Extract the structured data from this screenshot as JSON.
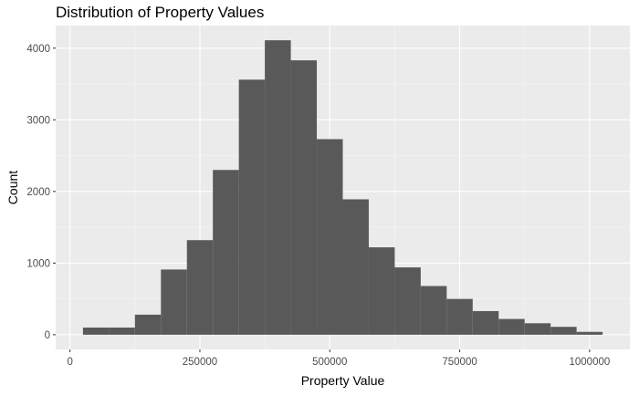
{
  "chart_data": {
    "type": "bar",
    "title": "Distribution of Property Values",
    "xlabel": "Property Value",
    "ylabel": "Count",
    "bin_width": 50000,
    "bins": [
      {
        "x_start": 25000,
        "x_end": 75000,
        "count": 100
      },
      {
        "x_start": 75000,
        "x_end": 125000,
        "count": 100
      },
      {
        "x_start": 125000,
        "x_end": 175000,
        "count": 280
      },
      {
        "x_start": 175000,
        "x_end": 225000,
        "count": 910
      },
      {
        "x_start": 225000,
        "x_end": 275000,
        "count": 1320
      },
      {
        "x_start": 275000,
        "x_end": 325000,
        "count": 2300
      },
      {
        "x_start": 325000,
        "x_end": 375000,
        "count": 3560
      },
      {
        "x_start": 375000,
        "x_end": 425000,
        "count": 4110
      },
      {
        "x_start": 425000,
        "x_end": 475000,
        "count": 3830
      },
      {
        "x_start": 475000,
        "x_end": 525000,
        "count": 2730
      },
      {
        "x_start": 525000,
        "x_end": 575000,
        "count": 1890
      },
      {
        "x_start": 575000,
        "x_end": 625000,
        "count": 1220
      },
      {
        "x_start": 625000,
        "x_end": 675000,
        "count": 940
      },
      {
        "x_start": 675000,
        "x_end": 725000,
        "count": 680
      },
      {
        "x_start": 725000,
        "x_end": 775000,
        "count": 500
      },
      {
        "x_start": 775000,
        "x_end": 825000,
        "count": 330
      },
      {
        "x_start": 825000,
        "x_end": 875000,
        "count": 220
      },
      {
        "x_start": 875000,
        "x_end": 925000,
        "count": 160
      },
      {
        "x_start": 925000,
        "x_end": 975000,
        "count": 110
      },
      {
        "x_start": 975000,
        "x_end": 1025000,
        "count": 40
      }
    ],
    "x_ticks": [
      0,
      250000,
      500000,
      750000,
      1000000
    ],
    "x_tick_labels": [
      "0",
      "250000",
      "500000",
      "750000",
      "1000000"
    ],
    "y_ticks": [
      0,
      1000,
      2000,
      3000,
      4000
    ],
    "y_tick_labels": [
      "0",
      "1000",
      "2000",
      "3000",
      "4000"
    ],
    "xlim": [
      -27500,
      1077500
    ],
    "ylim": [
      -205.5,
      4315.5
    ],
    "grid": true,
    "legend": "none",
    "colors": {
      "bar": "#595959",
      "panel_background": "#EBEBEB",
      "grid_major": "#FFFFFF",
      "grid_minor": "#F5F5F5",
      "tick_label": "#4D4D4D",
      "axis_title": "#000000"
    }
  }
}
